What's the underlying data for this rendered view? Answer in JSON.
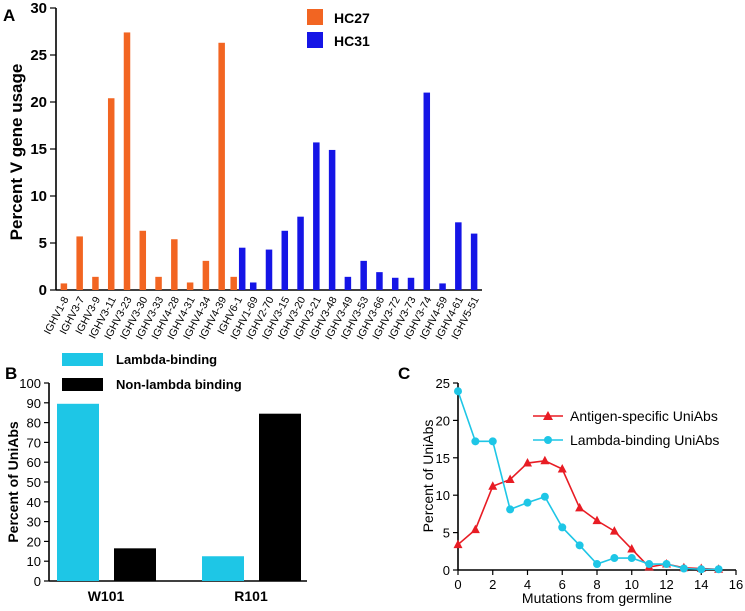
{
  "chart_data": [
    {
      "panel": "A",
      "type": "bar",
      "ylabel": "Percent V gene usage",
      "ylim": [
        0,
        30
      ],
      "yticks": [
        0,
        5,
        10,
        15,
        20,
        25,
        30
      ],
      "categories": [
        "IGHV1-8",
        "IGHV3-7",
        "IGHV3-9",
        "IGHV3-11",
        "IGHV3-23",
        "IGHV3-30",
        "IGHV3-33",
        "IGHV4-28",
        "IGHV4-31",
        "IGHV4-34",
        "IGHV4-39",
        "IGHV6-1",
        "IGHV1-69",
        "IGHV2-70",
        "IGHV3-15",
        "IGHV3-20",
        "IGHV3-21",
        "IGHV3-48",
        "IGHV3-49",
        "IGHV3-53",
        "IGHV3-66",
        "IGHV3-72",
        "IGHV3-73",
        "IGHV3-74",
        "IGHV4-59",
        "IGHV4-61",
        "IGHV5-51"
      ],
      "series": [
        {
          "name": "HC27",
          "color": "#f26522",
          "values": [
            0.7,
            5.7,
            1.4,
            20.4,
            27.4,
            6.3,
            1.4,
            5.4,
            0.8,
            3.1,
            26.3,
            1.4,
            null,
            null,
            null,
            null,
            null,
            null,
            null,
            null,
            null,
            null,
            null,
            null,
            null,
            null,
            null
          ]
        },
        {
          "name": "HC31",
          "color": "#1515e6",
          "values": [
            null,
            null,
            null,
            null,
            null,
            null,
            null,
            null,
            null,
            null,
            null,
            4.5,
            0.8,
            4.3,
            6.3,
            7.8,
            15.7,
            14.9,
            1.4,
            3.1,
            1.9,
            1.3,
            1.3,
            21.0,
            0.7,
            7.2,
            6.0
          ]
        }
      ]
    },
    {
      "panel": "B",
      "type": "bar",
      "ylabel": "Percent of UniAbs",
      "ylim": [
        0,
        100
      ],
      "yticks": [
        0,
        10,
        20,
        30,
        40,
        50,
        60,
        70,
        80,
        90,
        100
      ],
      "categories": [
        "W101",
        "R101"
      ],
      "series": [
        {
          "name": "Lambda-binding",
          "color": "#1ec6e6",
          "values": [
            89.5,
            12.5
          ]
        },
        {
          "name": "Non-lambda binding",
          "color": "#000000",
          "values": [
            16.5,
            84.5
          ]
        }
      ]
    },
    {
      "panel": "C",
      "type": "line",
      "xlabel": "Mutations from germline",
      "ylabel": "Percent of UniAbs",
      "xlim": [
        0,
        16
      ],
      "ylim": [
        0,
        25
      ],
      "xticks": [
        0,
        2,
        4,
        6,
        8,
        10,
        12,
        14,
        16
      ],
      "yticks": [
        0,
        5,
        10,
        15,
        20,
        25
      ],
      "x": [
        0,
        1,
        2,
        3,
        4,
        5,
        6,
        7,
        8,
        9,
        10,
        11,
        12,
        13,
        14,
        15
      ],
      "series": [
        {
          "name": "Antigen-specific UniAbs",
          "color": "#e81c24",
          "marker": "triangle",
          "values": [
            3.4,
            5.4,
            11.2,
            12.1,
            14.3,
            14.6,
            13.5,
            8.3,
            6.6,
            5.2,
            2.8,
            0.4,
            0.8,
            0.3,
            0.2,
            0.1
          ]
        },
        {
          "name": "Lambda-binding UniAbs",
          "color": "#1ec6e6",
          "marker": "circle",
          "values": [
            23.9,
            17.2,
            17.2,
            8.1,
            9.0,
            9.8,
            5.7,
            3.3,
            0.8,
            1.6,
            1.6,
            0.8,
            0.8,
            0.2,
            0.1,
            0.1
          ]
        }
      ]
    }
  ]
}
